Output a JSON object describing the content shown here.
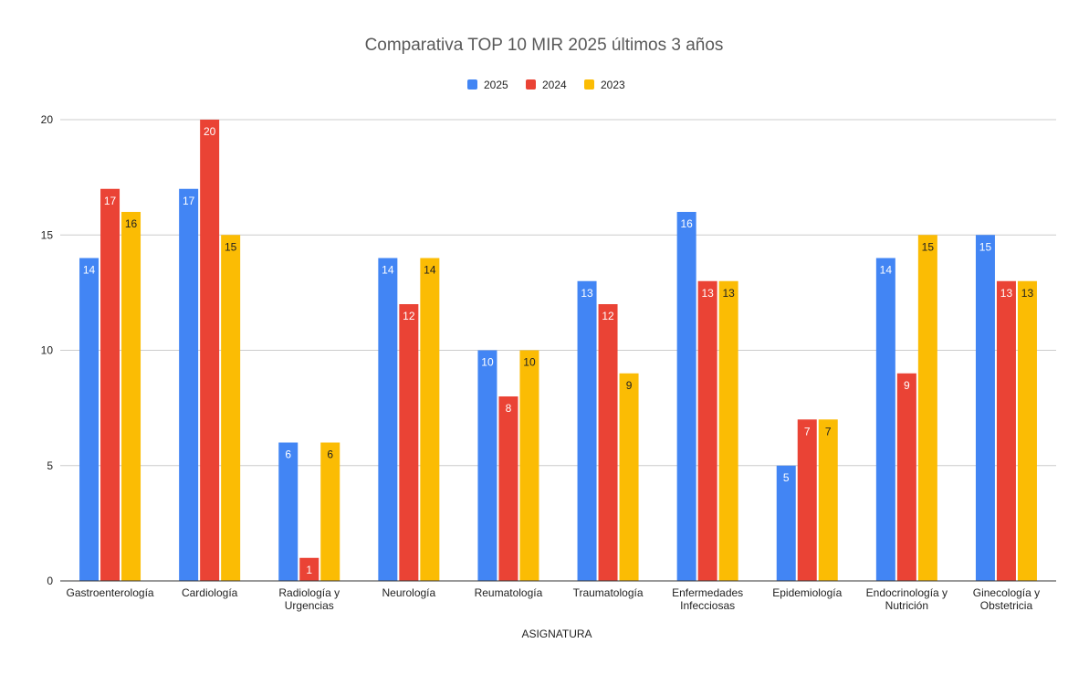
{
  "chart_data": {
    "type": "bar",
    "title": "Comparativa TOP 10 MIR 2025 últimos 3 años",
    "xlabel": "ASIGNATURA",
    "ylabel": "",
    "ylim": [
      0,
      20
    ],
    "yticks": [
      0,
      5,
      10,
      15,
      20
    ],
    "grid": true,
    "legend_position": "top",
    "categories": [
      [
        "Gastroenterología"
      ],
      [
        "Cardiología"
      ],
      [
        "Radiología y",
        "Urgencias"
      ],
      [
        "Neurología"
      ],
      [
        "Reumatología"
      ],
      [
        "Traumatología"
      ],
      [
        "Enfermedades",
        "Infecciosas"
      ],
      [
        "Epidemiología"
      ],
      [
        "Endocrinología y",
        "Nutrición"
      ],
      [
        "Ginecología y",
        "Obstetricia"
      ]
    ],
    "series": [
      {
        "name": "2025",
        "color": "#4285f4",
        "label_color": "#ffffff",
        "values": [
          14,
          17,
          6,
          14,
          10,
          13,
          16,
          5,
          14,
          15
        ]
      },
      {
        "name": "2024",
        "color": "#ea4335",
        "label_color": "#ffffff",
        "values": [
          17,
          20,
          1,
          12,
          8,
          12,
          13,
          7,
          9,
          13
        ]
      },
      {
        "name": "2023",
        "color": "#fbbc04",
        "label_color": "#222222",
        "values": [
          16,
          15,
          6,
          14,
          10,
          9,
          13,
          7,
          15,
          13
        ]
      }
    ]
  }
}
